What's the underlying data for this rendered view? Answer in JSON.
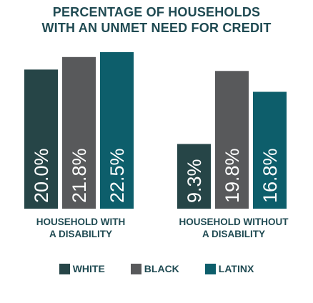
{
  "title_lines": [
    "PERCENTAGE OF HOUSEHOLDS",
    "WITH AN UNMET NEED FOR CREDIT"
  ],
  "chart_data": {
    "type": "bar",
    "title": "PERCENTAGE OF HOUSEHOLDS WITH AN UNMET NEED FOR CREDIT",
    "categories": [
      "HOUSEHOLD WITH A DISABILITY",
      "HOUSEHOLD WITHOUT A DISABILITY"
    ],
    "category_lines": [
      [
        "HOUSEHOLD WITH",
        "A DISABILITY"
      ],
      [
        "HOUSEHOLD WITHOUT",
        "A DISABILITY"
      ]
    ],
    "series": [
      {
        "name": "WHITE",
        "values": [
          20.0,
          9.3
        ],
        "labels": [
          "20.0%",
          "9.3%"
        ],
        "color": "#264547"
      },
      {
        "name": "BLACK",
        "values": [
          21.8,
          19.8
        ],
        "labels": [
          "21.8%",
          "19.8%"
        ],
        "color": "#58595b"
      },
      {
        "name": "LATINX",
        "values": [
          22.5,
          16.8
        ],
        "labels": [
          "22.5%",
          "16.8%"
        ],
        "color": "#0d5e6b"
      }
    ],
    "value_labels_rotated": true,
    "ylim": [
      0,
      22.5
    ],
    "grid": false,
    "legend_position": "bottom"
  },
  "colors": {
    "title_text": "#1f4a52",
    "background": "#ffffff"
  }
}
